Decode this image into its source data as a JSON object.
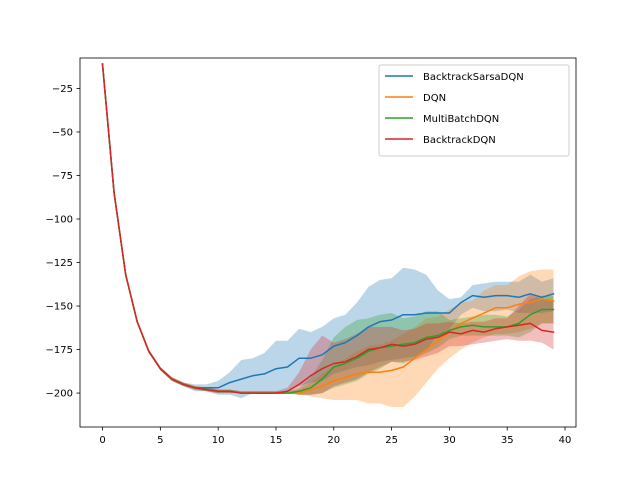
{
  "chart_data": {
    "type": "line",
    "title": "",
    "xlabel": "",
    "ylabel": "",
    "xlim": [
      -1.95,
      40.95
    ],
    "ylim": [
      -219.5,
      -7.5
    ],
    "xticks": [
      0,
      5,
      10,
      15,
      20,
      25,
      30,
      35,
      40
    ],
    "yticks": [
      -200,
      -175,
      -150,
      -125,
      -100,
      -75,
      -50,
      -25
    ],
    "grid": false,
    "legend_position": "top-right",
    "x": [
      0,
      1,
      2,
      3,
      4,
      5,
      6,
      7,
      8,
      9,
      10,
      11,
      12,
      13,
      14,
      15,
      16,
      17,
      18,
      19,
      20,
      21,
      22,
      23,
      24,
      25,
      26,
      27,
      28,
      29,
      30,
      31,
      32,
      33,
      34,
      35,
      36,
      37,
      38,
      39
    ],
    "series": [
      {
        "name": "BacktrackSarsaDQN",
        "color": "#1f77b4",
        "values": [
          -11,
          -85,
          -132,
          -159,
          -176,
          -186,
          -192,
          -195,
          -197,
          -197,
          -197,
          -194,
          -192,
          -190,
          -189,
          -186,
          -185,
          -180,
          -180,
          -178,
          -173,
          -171,
          -167,
          -162,
          -159,
          -158,
          -155,
          -155,
          -154,
          -154,
          -154,
          -148,
          -144,
          -145,
          -144,
          -144,
          -145,
          -143,
          -145,
          -143
        ],
        "upper": [
          -11,
          -84,
          -131,
          -158,
          -175,
          -185,
          -191,
          -194,
          -195,
          -195,
          -193,
          -188,
          -181,
          -180,
          -177,
          -170,
          -170,
          -163,
          -165,
          -162,
          -157,
          -155,
          -148,
          -139,
          -135,
          -134,
          -128,
          -129,
          -132,
          -141,
          -146,
          -145,
          -138,
          -137,
          -136,
          -136,
          -136,
          -132,
          -136,
          -134
        ],
        "lower": [
          -11,
          -86,
          -133,
          -160,
          -177,
          -187,
          -193,
          -196,
          -199,
          -199,
          -201,
          -201,
          -203,
          -200,
          -200,
          -200,
          -199,
          -196,
          -194,
          -193,
          -189,
          -187,
          -185,
          -184,
          -182,
          -181,
          -180,
          -179,
          -175,
          -167,
          -163,
          -155,
          -151,
          -153,
          -153,
          -152,
          -154,
          -154,
          -154,
          -153
        ]
      },
      {
        "name": "DQN",
        "color": "#ff7f0e",
        "values": [
          -11,
          -85,
          -132,
          -159,
          -176,
          -186,
          -192,
          -195,
          -197,
          -198,
          -199,
          -199,
          -200,
          -200,
          -200,
          -200,
          -200,
          -200,
          -198,
          -196,
          -193,
          -191,
          -189,
          -188,
          -188,
          -187,
          -185,
          -180,
          -175,
          -170,
          -165,
          -160,
          -157,
          -154,
          -151,
          -151,
          -149,
          -148,
          -146,
          -147
        ],
        "upper": [
          -11,
          -84,
          -131,
          -158,
          -175,
          -185,
          -191,
          -194,
          -196,
          -197,
          -198,
          -198,
          -199,
          -199,
          -199,
          -199,
          -199,
          -198,
          -194,
          -189,
          -184,
          -180,
          -176,
          -173,
          -172,
          -170,
          -166,
          -162,
          -157,
          -156,
          -152,
          -148,
          -147,
          -141,
          -138,
          -138,
          -133,
          -130,
          -129,
          -129
        ],
        "lower": [
          -11,
          -86,
          -133,
          -160,
          -177,
          -187,
          -193,
          -196,
          -198,
          -199,
          -200,
          -200,
          -200,
          -200,
          -200,
          -200,
          -200,
          -201,
          -202,
          -203,
          -204,
          -204,
          -204,
          -206,
          -206,
          -208,
          -208,
          -202,
          -194,
          -186,
          -180,
          -175,
          -171,
          -168,
          -166,
          -166,
          -165,
          -163,
          -160,
          -160
        ]
      },
      {
        "name": "MultiBatchDQN",
        "color": "#2ca02c",
        "values": [
          -11,
          -85,
          -132,
          -159,
          -176,
          -186,
          -192,
          -195,
          -197,
          -198,
          -199,
          -199,
          -200,
          -200,
          -200,
          -200,
          -200,
          -199,
          -197,
          -192,
          -185,
          -183,
          -180,
          -176,
          -174,
          -173,
          -172,
          -171,
          -168,
          -167,
          -164,
          -162,
          -161,
          -162,
          -162,
          -162,
          -160,
          -155,
          -152,
          -152
        ],
        "upper": [
          -11,
          -84,
          -131,
          -158,
          -175,
          -185,
          -191,
          -194,
          -196,
          -197,
          -198,
          -198,
          -199,
          -199,
          -199,
          -199,
          -199,
          -197,
          -191,
          -181,
          -168,
          -162,
          -158,
          -157,
          -155,
          -154,
          -157,
          -156,
          -153,
          -153,
          -158,
          -157,
          -156,
          -155,
          -155,
          -156,
          -152,
          -146,
          -144,
          -144
        ],
        "lower": [
          -11,
          -86,
          -133,
          -160,
          -177,
          -187,
          -193,
          -196,
          -198,
          -199,
          -200,
          -200,
          -200,
          -200,
          -200,
          -200,
          -200,
          -201,
          -201,
          -200,
          -197,
          -195,
          -193,
          -189,
          -186,
          -182,
          -183,
          -180,
          -177,
          -174,
          -169,
          -167,
          -167,
          -167,
          -167,
          -167,
          -168,
          -165,
          -160,
          -160
        ]
      },
      {
        "name": "BacktrackDQN",
        "color": "#d62728",
        "values": [
          -11,
          -85,
          -132,
          -159,
          -176,
          -186,
          -192,
          -195,
          -197,
          -198,
          -199,
          -199,
          -200,
          -200,
          -200,
          -200,
          -199,
          -195,
          -190,
          -186,
          -183,
          -182,
          -179,
          -175,
          -174,
          -172,
          -173,
          -172,
          -169,
          -168,
          -165,
          -166,
          -164,
          -165,
          -163,
          -162,
          -161,
          -160,
          -164,
          -165
        ],
        "upper": [
          -11,
          -84,
          -131,
          -158,
          -175,
          -185,
          -191,
          -194,
          -196,
          -197,
          -198,
          -198,
          -199,
          -199,
          -199,
          -199,
          -197,
          -188,
          -175,
          -167,
          -171,
          -169,
          -166,
          -162,
          -162,
          -162,
          -164,
          -163,
          -160,
          -160,
          -159,
          -160,
          -159,
          -159,
          -157,
          -157,
          -150,
          -143,
          -146,
          -147
        ],
        "lower": [
          -11,
          -86,
          -133,
          -160,
          -177,
          -187,
          -193,
          -196,
          -198,
          -199,
          -200,
          -200,
          -200,
          -200,
          -200,
          -200,
          -200,
          -201,
          -201,
          -200,
          -196,
          -194,
          -192,
          -188,
          -185,
          -182,
          -182,
          -181,
          -179,
          -177,
          -173,
          -173,
          -172,
          -171,
          -170,
          -169,
          -170,
          -170,
          -171,
          -175
        ]
      }
    ]
  }
}
